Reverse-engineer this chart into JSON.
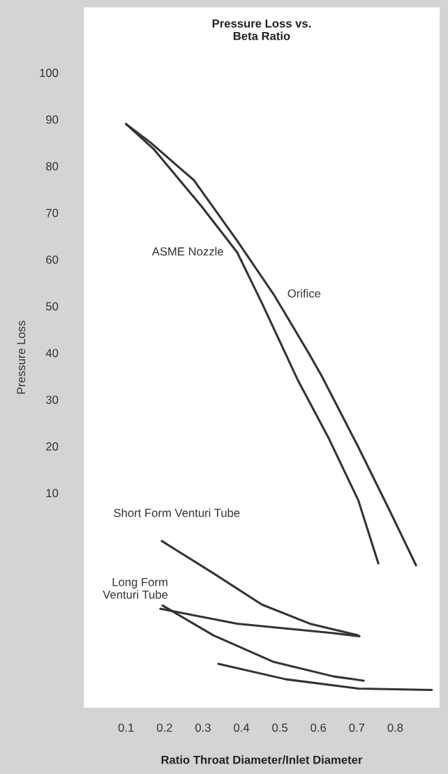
{
  "chart_data": {
    "type": "line",
    "title": "Pressure Loss vs.\nBeta Ratio",
    "xlabel": "Ratio Throat Diameter/Inlet Diameter",
    "ylabel": "Pressure Loss",
    "xlim": [
      -0.01,
      0.915
    ],
    "ylim": [
      -36,
      114
    ],
    "xticks": [
      0.1,
      0.2,
      0.3,
      0.4,
      0.5,
      0.6,
      0.7,
      0.8
    ],
    "yticks": [
      10,
      20,
      30,
      40,
      50,
      60,
      70,
      80,
      90,
      100
    ],
    "grid": false,
    "marker": "none",
    "line_style": "solid",
    "series": [
      {
        "name": "Orifice",
        "color": "#333333",
        "x": [
          0.1,
          0.164,
          0.276,
          0.389,
          0.484,
          0.578,
          0.609,
          0.704,
          0.785,
          0.854
        ],
        "values": [
          89,
          85,
          77,
          64,
          52.5,
          39.5,
          35,
          19.8,
          6.3,
          -5.5
        ]
      },
      {
        "name": "ASME Nozzle",
        "color": "#333333",
        "x": [
          0.1,
          0.171,
          0.296,
          0.389,
          0.453,
          0.547,
          0.627,
          0.704,
          0.756
        ],
        "values": [
          89,
          83.7,
          71.4,
          61.5,
          50.7,
          34.1,
          21.7,
          8.4,
          -5.1
        ]
      },
      {
        "name": "Short Form Venturi Tube",
        "color": "#333333",
        "x": [
          0.193,
          0.327,
          0.453,
          0.578,
          0.704
        ],
        "values": [
          -0.3,
          -7.2,
          -13.9,
          -18,
          -20.5
        ]
      },
      {
        "name": "Long Form\nVenturi Tube",
        "color": "#333333",
        "x": [
          0.189,
          0.389,
          0.635,
          0.707
        ],
        "values": [
          -14.8,
          -18,
          -20,
          -20.7
        ]
      },
      {
        "color": "#333333",
        "x": [
          0.195,
          0.327,
          0.484,
          0.64,
          0.718
        ],
        "values": [
          -14.1,
          -20.5,
          -26.2,
          -29.3,
          -30.2
        ]
      },
      {
        "color": "#333333",
        "x": [
          0.34,
          0.515,
          0.704,
          0.895
        ],
        "values": [
          -26.6,
          -29.9,
          -31.9,
          -32.2
        ]
      }
    ]
  }
}
